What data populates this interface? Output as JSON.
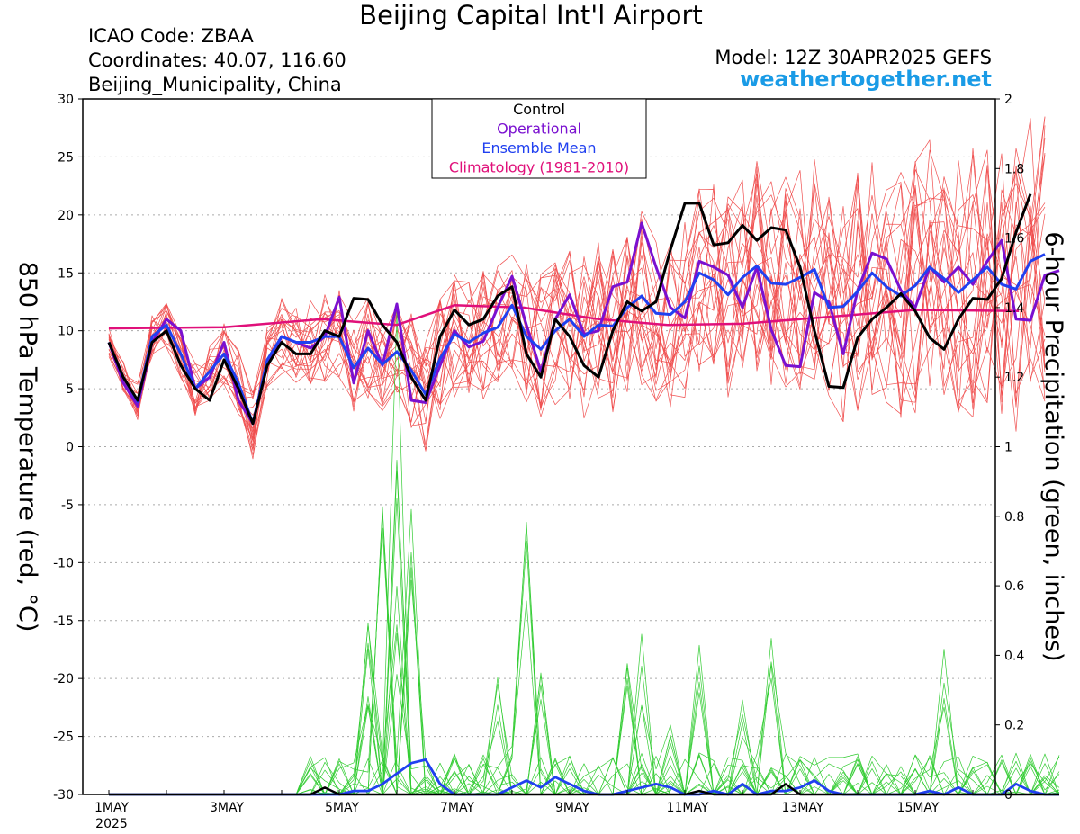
{
  "header": {
    "title": "Beijing Capital Int'l Airport",
    "icao": "ICAO Code: ZBAA",
    "coords": "Coordinates: 40.07, 116.60",
    "region": "Beijing_Municipality, China",
    "model": "Model: 12Z 30APR2025 GEFS",
    "site": "weathertogether.net"
  },
  "colors": {
    "members_temp": "#f05050",
    "members_precip": "#33cc33",
    "control": "#000000",
    "operational": "#7a10d0",
    "ensemble_mean": "#2040f0",
    "climatology": "#e0107a"
  },
  "chart_data": {
    "type": "line",
    "ylabel": "850 hPa Temperature (red, °C)",
    "y2label": "6-hour Precipitation (green, inches)",
    "ylim": [
      -30,
      30
    ],
    "y2lim": [
      0,
      2
    ],
    "yticks": [
      30,
      25,
      20,
      15,
      10,
      5,
      0,
      -5,
      -10,
      -15,
      -20,
      -25,
      -30
    ],
    "y2ticks": [
      "2",
      "1.8",
      "1.6",
      "1.4",
      "1.2",
      "1",
      "0.8",
      "0.6",
      "0.4",
      "0.2",
      "0"
    ],
    "x_labels": [
      {
        "day": 1,
        "label": "1MAY",
        "sub": "2025"
      },
      {
        "day": 3,
        "label": "3MAY"
      },
      {
        "day": 5,
        "label": "5MAY"
      },
      {
        "day": 7,
        "label": "7MAY"
      },
      {
        "day": 9,
        "label": "9MAY"
      },
      {
        "day": 11,
        "label": "11MAY"
      },
      {
        "day": 13,
        "label": "13MAY"
      },
      {
        "day": 15,
        "label": "15MAY"
      }
    ],
    "x_step_hours": 6,
    "grid": true,
    "legend": {
      "position": "top-center",
      "entries": [
        "Control",
        "Operational",
        "Ensemble Mean",
        "Climatology (1981-2010)"
      ]
    },
    "temperature": {
      "control": [
        9,
        6,
        4,
        9,
        10,
        7,
        5,
        4,
        7.5,
        5,
        2,
        7,
        9,
        8,
        8,
        10,
        9.5,
        12.8,
        12.7,
        10.5,
        9,
        6,
        4,
        9.5,
        11.8,
        10.5,
        11,
        13,
        13.8,
        8,
        6,
        11,
        9.5,
        7,
        6,
        10,
        12.5,
        11.7,
        12.5,
        17,
        21,
        21,
        17.4,
        17.6,
        19.1,
        17.8,
        18.9,
        18.7,
        15.5,
        10,
        5.2,
        5.1,
        9.4,
        11,
        12,
        13.2,
        11.7,
        9.4,
        8.4,
        11,
        12.8,
        12.7,
        14.5,
        18.5,
        21.8
      ],
      "operational": [
        9,
        5.5,
        3.5,
        9,
        11,
        10,
        5,
        6,
        9,
        4,
        2,
        7,
        9.5,
        9,
        8.5,
        9.5,
        12.9,
        5.5,
        10,
        7,
        12.3,
        4,
        3.8,
        7,
        10,
        8.6,
        9.1,
        12,
        14.7,
        10.5,
        6.5,
        11,
        13.1,
        9.7,
        10,
        13.8,
        14.2,
        19.3,
        15.5,
        12,
        11.1,
        16,
        15.5,
        14.8,
        12,
        15.5,
        10.1,
        7,
        6.9,
        13.3,
        12.5,
        8,
        13.5,
        16.7,
        16.2,
        13.5,
        12,
        15.5,
        14.2,
        15.5,
        14,
        16,
        17.8,
        11,
        10.9,
        14.8,
        15.2
      ],
      "ensemble_mean": [
        9,
        6,
        3.9,
        9.5,
        10.5,
        8,
        5,
        6.5,
        8,
        5.5,
        2,
        7.5,
        9.5,
        9,
        9,
        9.5,
        9.5,
        6.8,
        8.5,
        7.1,
        8.2,
        6.6,
        4.5,
        7.6,
        9.7,
        9,
        9.8,
        10.3,
        12.2,
        9.5,
        8.4,
        10,
        11,
        9.5,
        10.5,
        10.4,
        12,
        13,
        11.5,
        11.4,
        12.5,
        15,
        14.4,
        13.1,
        14.6,
        15.6,
        14.1,
        14,
        14.6,
        15.3,
        12,
        12.1,
        13.4,
        15,
        13.8,
        13,
        13.9,
        15.5,
        14.5,
        13.3,
        14.4,
        15.5,
        14,
        13.6,
        16,
        16.6
      ]
    },
    "climatology": {
      "x_days": [
        1,
        3,
        4.7,
        6,
        7,
        8.2,
        9.5,
        10.7,
        12,
        13.5,
        15,
        16.8
      ],
      "values": [
        10.2,
        10.3,
        11,
        10.5,
        12.2,
        12,
        11,
        10.5,
        10.6,
        11.2,
        11.8,
        11.7
      ]
    },
    "precipitation": {
      "control": [
        {
          "day": 4.8,
          "value": 0.02
        },
        {
          "day": 11.2,
          "value": 0.01
        },
        {
          "day": 12.8,
          "value": 0.03
        }
      ],
      "ensemble_mean": [
        0,
        0,
        0,
        0,
        0,
        0,
        0,
        0,
        0,
        0,
        0,
        0,
        0,
        0,
        0,
        0,
        0,
        0.01,
        0.01,
        0.03,
        0.06,
        0.09,
        0.1,
        0.03,
        0,
        0,
        0,
        0,
        0.02,
        0.04,
        0.02,
        0.05,
        0.03,
        0.01,
        0,
        0,
        0.01,
        0.02,
        0.03,
        0.02,
        0,
        0,
        0.01,
        0,
        0.03,
        0,
        0.01,
        0.01,
        0.02,
        0.04,
        0.01,
        0,
        0,
        0,
        0,
        0,
        0,
        0.01,
        0,
        0.02,
        0,
        0,
        0,
        0.03,
        0.01,
        0,
        0
      ]
    }
  }
}
